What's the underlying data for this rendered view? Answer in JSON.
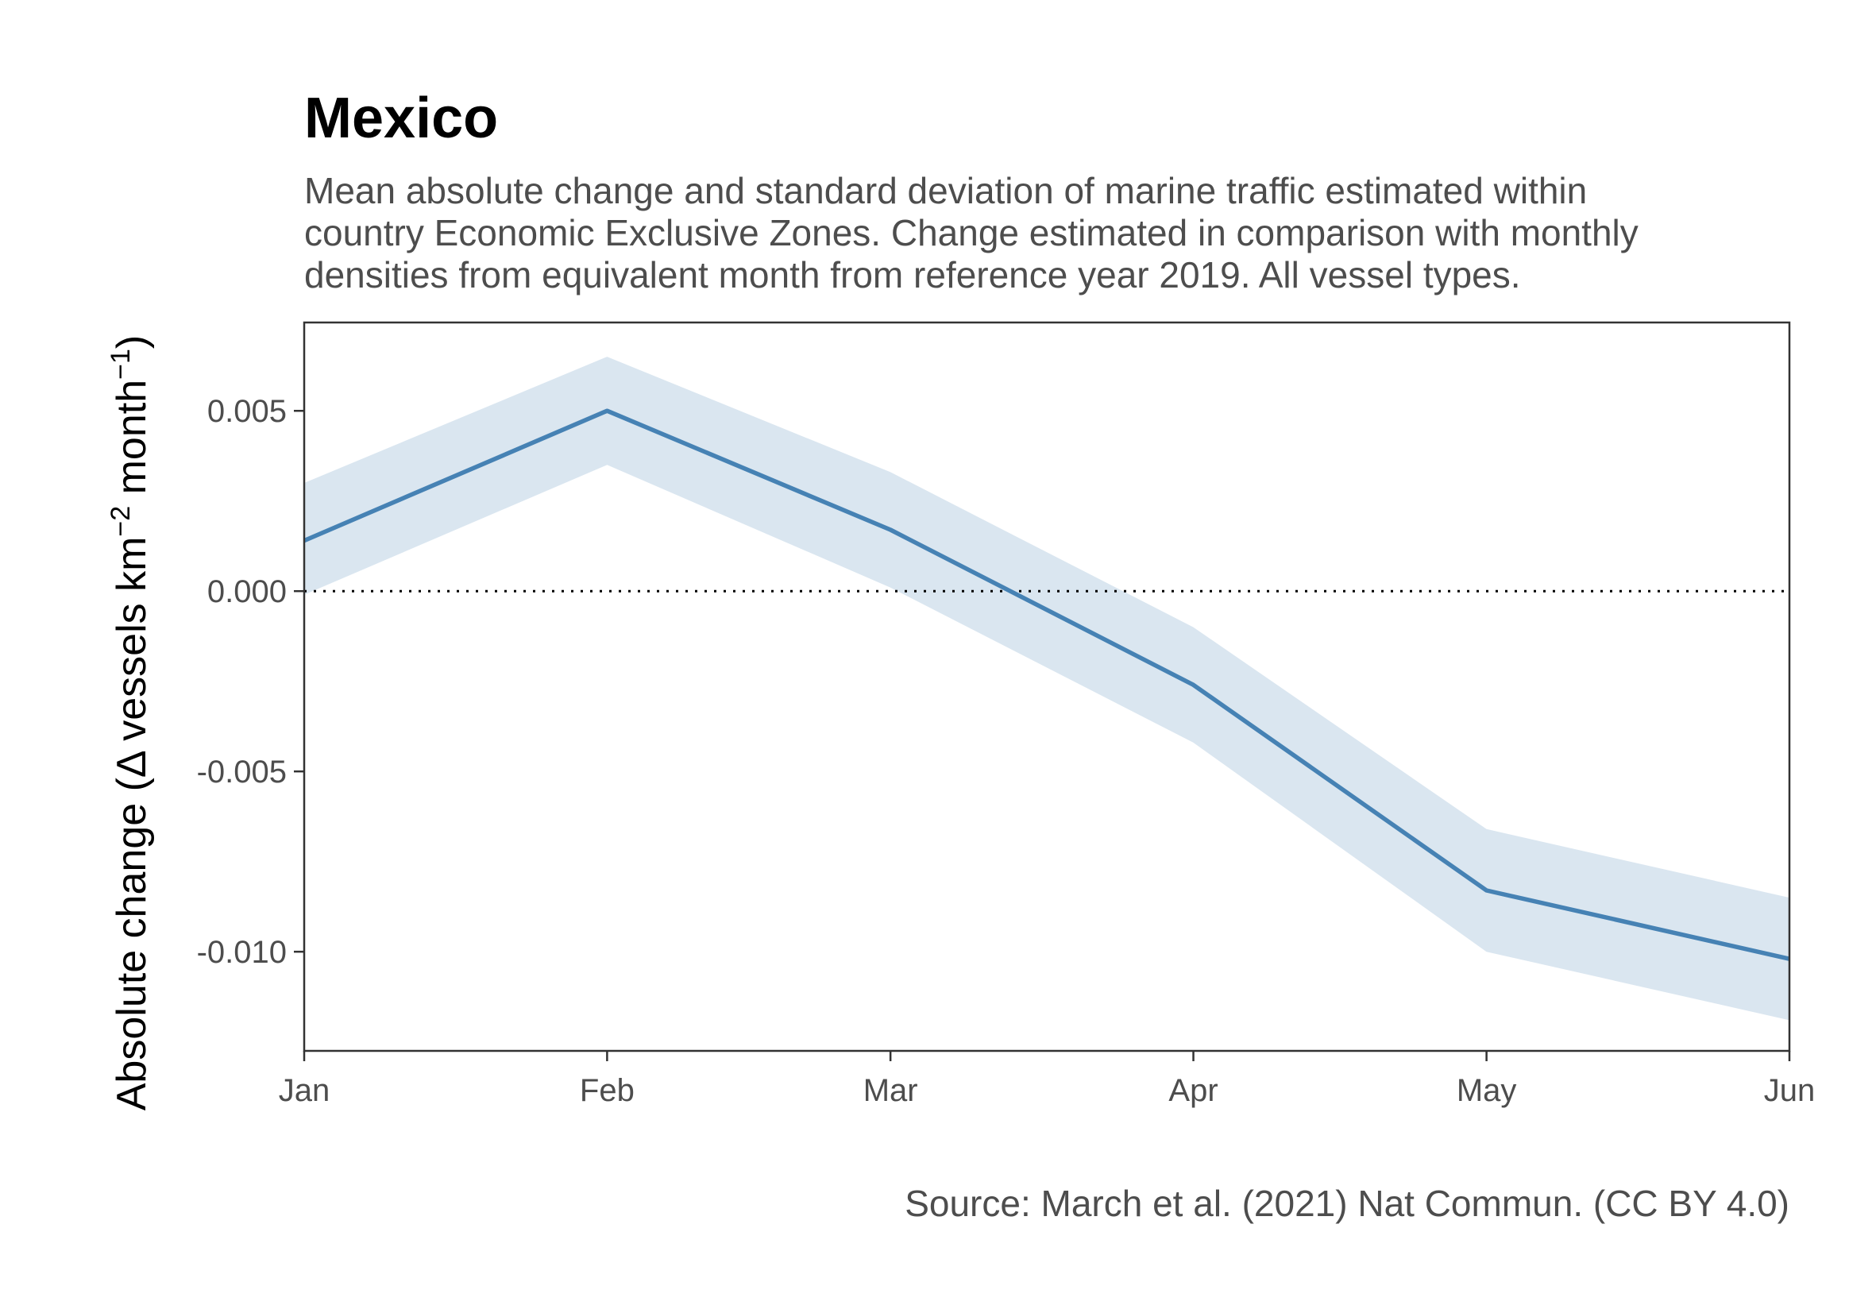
{
  "chart_data": {
    "type": "line",
    "title": "Mexico",
    "subtitle": [
      "Mean absolute change and standard deviation of marine traffic estimated within",
      "country Economic Exclusive Zones. Change estimated in comparison with monthly",
      "densities from equivalent month from reference year 2019. All vessel types."
    ],
    "ylabel": {
      "prefix": "Absolute change (Δ vessels km",
      "sup1": "−2",
      "middle": " month",
      "sup2": "−1",
      "suffix": ")"
    },
    "xlabel": "",
    "x": [
      "2020-01-01",
      "2020-02-01",
      "2020-03-01",
      "2020-04-01",
      "2020-05-01",
      "2020-06-01"
    ],
    "x_tick_labels": [
      "Jan",
      "Feb",
      "Mar",
      "Apr",
      "May",
      "Jun"
    ],
    "series": [
      {
        "values": [
          0.0014,
          0.005,
          0.0017,
          -0.0026,
          -0.0083,
          -0.0102
        ],
        "lower": [
          -0.0001,
          0.0035,
          0.0001,
          -0.0042,
          -0.01,
          -0.0119
        ],
        "upper": [
          0.003,
          0.0065,
          0.0033,
          -0.001,
          -0.0066,
          -0.0085
        ],
        "color": "#4682b4",
        "ribbon_color": "#dae6f0"
      }
    ],
    "y_ticks": [
      0.005,
      0.0,
      -0.005,
      -0.01
    ],
    "y_tick_labels": [
      "0.005",
      "0.000",
      "-0.005",
      "-0.010"
    ],
    "ylim": [
      -0.01275,
      0.00745
    ],
    "xlim": [
      "2020-01-01",
      "2020-06-01"
    ],
    "reference_line": {
      "y": 0,
      "style": "dotted"
    },
    "grid": false,
    "legend": "none",
    "caption": "Source: March et al. (2021) Nat Commun. (CC BY 4.0)"
  }
}
